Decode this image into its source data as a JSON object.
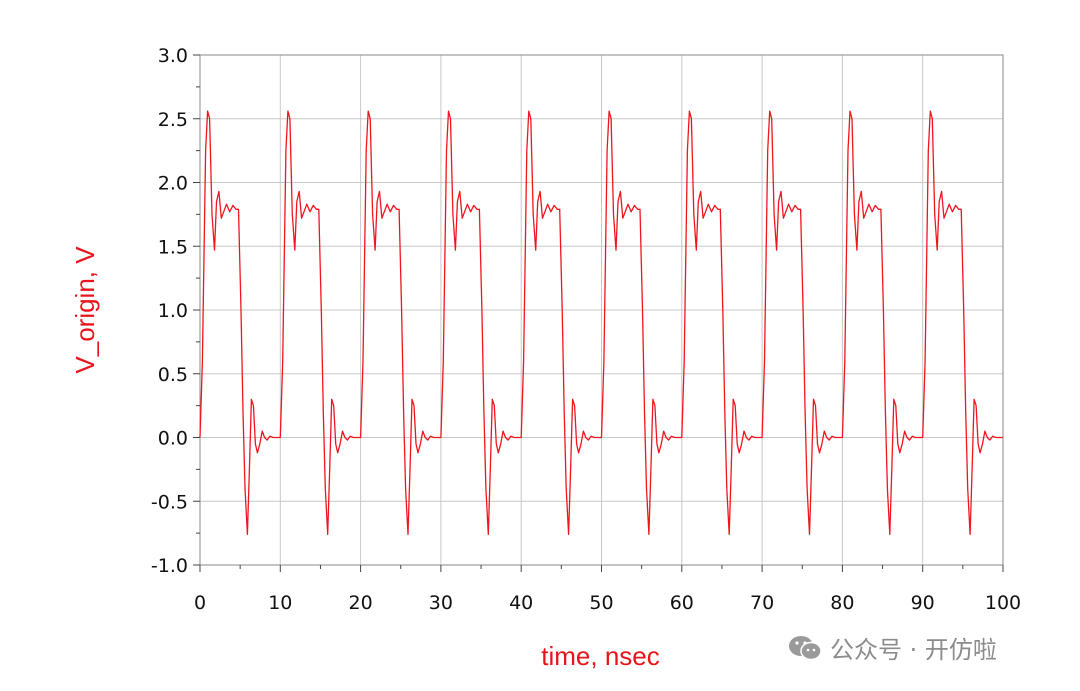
{
  "chart_data": {
    "type": "line",
    "title": "",
    "xlabel": "time, nsec",
    "ylabel": "V_origin, V",
    "xlim": [
      0,
      100
    ],
    "ylim": [
      -1.0,
      3.0
    ],
    "x_ticks": [
      0,
      10,
      20,
      30,
      40,
      50,
      60,
      70,
      80,
      90,
      100
    ],
    "y_ticks": [
      -1.0,
      -0.5,
      0.0,
      0.5,
      1.0,
      1.5,
      2.0,
      2.5,
      3.0
    ],
    "x_tick_labels": [
      "0",
      "10",
      "20",
      "30",
      "40",
      "50",
      "60",
      "70",
      "80",
      "90",
      "100"
    ],
    "y_tick_labels": [
      "-1.0",
      "-0.5",
      "0.0",
      "0.5",
      "1.0",
      "1.5",
      "2.0",
      "2.5",
      "3.0"
    ],
    "grid": true,
    "label_color": "#e8141b",
    "series": [
      {
        "color": "#f0141e",
        "period_ns": 10,
        "periods": 10,
        "one_period": {
          "x": [
            0,
            0.3,
            0.7,
            0.95,
            1.2,
            1.5,
            1.8,
            2.05,
            2.35,
            2.65,
            2.95,
            3.3,
            3.7,
            4.1,
            4.5,
            4.8,
            5.1,
            5.35,
            5.6,
            5.9,
            6.15,
            6.4,
            6.65,
            6.9,
            7.15,
            7.45,
            7.75,
            8.05,
            8.35,
            8.7,
            9.1,
            9.5,
            10.0
          ],
          "y": [
            0.0,
            0.6,
            2.25,
            2.56,
            2.5,
            1.75,
            1.47,
            1.85,
            1.93,
            1.72,
            1.77,
            1.83,
            1.77,
            1.82,
            1.79,
            1.79,
            1.0,
            0.2,
            -0.4,
            -0.76,
            -0.25,
            0.3,
            0.25,
            -0.05,
            -0.12,
            -0.05,
            0.05,
            0.0,
            -0.02,
            0.01,
            0.0,
            0.0,
            0.0
          ]
        },
        "end_value": 0.0
      }
    ]
  },
  "watermark": {
    "text": "公众号 · 开仿啦"
  }
}
